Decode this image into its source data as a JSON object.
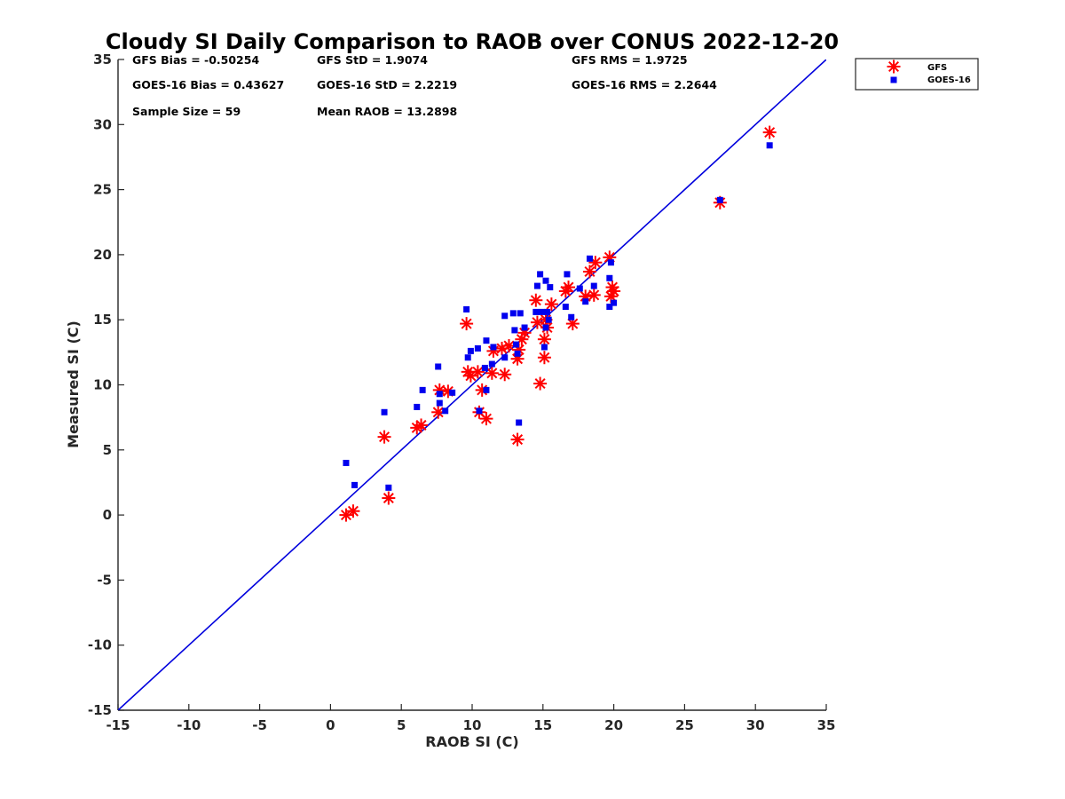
{
  "chart_data": {
    "type": "scatter",
    "title": "Cloudy SI Daily Comparison to RAOB over CONUS 2022-12-20",
    "xlabel": "RAOB SI (C)",
    "ylabel": "Measured SI (C)",
    "xlim": [
      -15,
      35
    ],
    "ylim": [
      -15,
      35
    ],
    "xticks": [
      "-15",
      "-10",
      "-5",
      "0",
      "5",
      "10",
      "15",
      "20",
      "25",
      "30",
      "35"
    ],
    "yticks": [
      "-15",
      "-10",
      "-5",
      "0",
      "5",
      "10",
      "15",
      "20",
      "25",
      "30",
      "35"
    ],
    "grid": false,
    "legend_position": "top-right, outside plot",
    "reference_line": {
      "type": "one-to-one",
      "color": "#0000dd"
    },
    "stats": [
      "GFS Bias = -0.50254",
      "GFS StD = 1.9074",
      "GFS RMS = 1.9725",
      "GOES-16 Bias = 0.43627",
      "GOES-16 StD = 2.2219",
      "GOES-16 RMS = 2.2644",
      "Sample Size = 59",
      "Mean RAOB = 13.2898"
    ],
    "series": [
      {
        "name": "GFS",
        "marker": "asterisk",
        "color": "#ff0000",
        "points": [
          [
            1.1,
            0.0
          ],
          [
            1.6,
            0.3
          ],
          [
            3.8,
            6.0
          ],
          [
            4.1,
            1.3
          ],
          [
            6.1,
            6.7
          ],
          [
            6.4,
            6.9
          ],
          [
            7.6,
            7.9
          ],
          [
            7.7,
            9.6
          ],
          [
            8.3,
            9.5
          ],
          [
            9.6,
            14.7
          ],
          [
            9.7,
            11.0
          ],
          [
            9.9,
            10.7
          ],
          [
            10.4,
            11.0
          ],
          [
            10.5,
            7.9
          ],
          [
            10.7,
            9.6
          ],
          [
            11.0,
            7.4
          ],
          [
            11.4,
            10.9
          ],
          [
            11.5,
            12.6
          ],
          [
            12.1,
            12.8
          ],
          [
            12.3,
            10.8
          ],
          [
            12.6,
            13.0
          ],
          [
            13.2,
            5.8
          ],
          [
            13.2,
            12.0
          ],
          [
            13.3,
            12.7
          ],
          [
            13.5,
            13.5
          ],
          [
            13.7,
            14.0
          ],
          [
            14.5,
            16.5
          ],
          [
            14.6,
            14.8
          ],
          [
            14.8,
            10.1
          ],
          [
            15.1,
            12.1
          ],
          [
            15.1,
            13.5
          ],
          [
            15.2,
            15.0
          ],
          [
            15.3,
            14.4
          ],
          [
            15.6,
            16.2
          ],
          [
            16.6,
            17.2
          ],
          [
            16.8,
            17.5
          ],
          [
            17.1,
            14.7
          ],
          [
            18.0,
            16.8
          ],
          [
            18.3,
            18.7
          ],
          [
            18.6,
            16.9
          ],
          [
            18.7,
            19.4
          ],
          [
            19.7,
            19.8
          ],
          [
            19.8,
            16.8
          ],
          [
            19.9,
            17.5
          ],
          [
            20.0,
            17.2
          ],
          [
            27.5,
            24.0
          ],
          [
            31.0,
            29.4
          ]
        ]
      },
      {
        "name": "GOES-16",
        "marker": "square",
        "color": "#0000ee",
        "points": [
          [
            1.1,
            4.0
          ],
          [
            1.7,
            2.3
          ],
          [
            3.8,
            7.9
          ],
          [
            4.1,
            2.1
          ],
          [
            6.1,
            8.3
          ],
          [
            6.5,
            9.6
          ],
          [
            7.6,
            11.4
          ],
          [
            7.7,
            8.6
          ],
          [
            7.7,
            9.3
          ],
          [
            8.1,
            8.0
          ],
          [
            8.6,
            9.4
          ],
          [
            9.6,
            15.8
          ],
          [
            9.7,
            12.1
          ],
          [
            9.9,
            12.6
          ],
          [
            10.4,
            12.8
          ],
          [
            10.5,
            8.0
          ],
          [
            10.9,
            11.3
          ],
          [
            11.0,
            9.6
          ],
          [
            11.0,
            13.4
          ],
          [
            11.4,
            11.6
          ],
          [
            11.5,
            12.9
          ],
          [
            12.3,
            15.3
          ],
          [
            12.3,
            12.1
          ],
          [
            12.9,
            15.5
          ],
          [
            13.0,
            14.2
          ],
          [
            13.1,
            13.1
          ],
          [
            13.2,
            12.4
          ],
          [
            13.3,
            7.1
          ],
          [
            13.4,
            15.5
          ],
          [
            13.7,
            14.4
          ],
          [
            14.5,
            15.6
          ],
          [
            14.6,
            17.6
          ],
          [
            14.8,
            18.5
          ],
          [
            14.9,
            15.6
          ],
          [
            15.1,
            12.9
          ],
          [
            15.2,
            14.4
          ],
          [
            15.2,
            18.0
          ],
          [
            15.3,
            15.6
          ],
          [
            15.4,
            15.0
          ],
          [
            15.5,
            17.5
          ],
          [
            16.6,
            16.0
          ],
          [
            16.7,
            18.5
          ],
          [
            17.0,
            15.2
          ],
          [
            17.6,
            17.4
          ],
          [
            18.0,
            16.4
          ],
          [
            18.3,
            19.7
          ],
          [
            18.6,
            17.6
          ],
          [
            19.7,
            18.2
          ],
          [
            19.7,
            16.0
          ],
          [
            19.8,
            19.4
          ],
          [
            20.0,
            16.3
          ],
          [
            27.5,
            24.2
          ],
          [
            31.0,
            28.4
          ]
        ]
      }
    ]
  }
}
